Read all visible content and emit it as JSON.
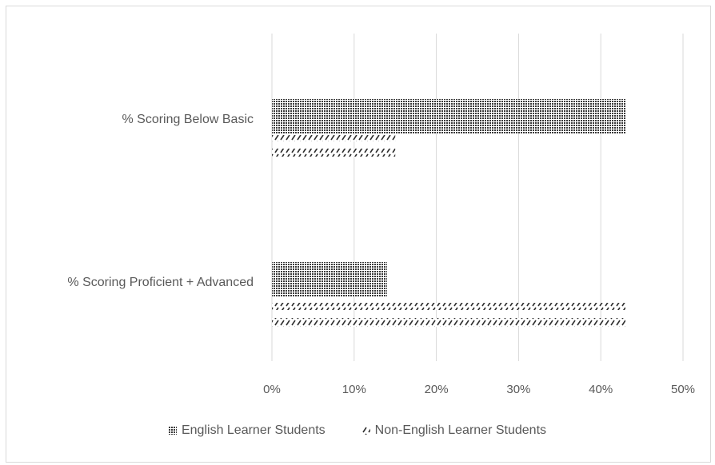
{
  "chart_data": {
    "type": "bar",
    "orientation": "horizontal",
    "categories": [
      "% Scoring Below Basic",
      "% Scoring Proficient + Advanced"
    ],
    "series": [
      {
        "name": "English Learner Students",
        "values": [
          43,
          14
        ],
        "pattern": "dense-dots",
        "color": "#404040"
      },
      {
        "name": "Non-English Learner Students",
        "values": [
          15,
          43
        ],
        "pattern": "diagonal-hatch",
        "color": "#404040"
      }
    ],
    "xlim": [
      0,
      50
    ],
    "x_ticks": [
      0,
      10,
      20,
      30,
      40,
      50
    ],
    "x_tick_labels": [
      "0%",
      "10%",
      "20%",
      "30%",
      "40%",
      "50%"
    ],
    "title": "",
    "xlabel": "",
    "ylabel": "",
    "grid": true,
    "legend_position": "bottom"
  },
  "colors": {
    "grid": "#d9d9d9",
    "text": "#595959",
    "bar": "#404040"
  }
}
